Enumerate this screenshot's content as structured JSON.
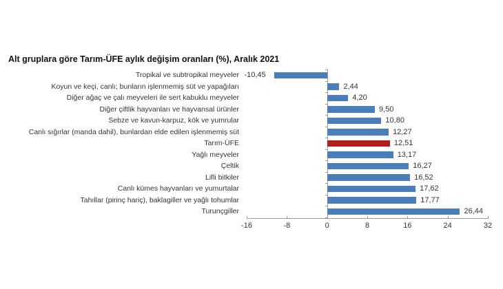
{
  "chart_data": {
    "type": "bar",
    "orientation": "horizontal",
    "title": "Alt gruplara göre Tarım-ÜFE aylık değişim oranları (%), Aralık 2021",
    "xlabel": "",
    "ylabel": "",
    "xlim": [
      -16,
      32
    ],
    "xticks": [
      "-16",
      "-8",
      "0",
      "8",
      "16",
      "24",
      "32"
    ],
    "grid": false,
    "legend": null,
    "categories": [
      "Tropikal ve subtropikal meyveler",
      "Koyun ve keçi, canlı; bunların işlenmemiş süt ve yapağıları",
      "Diğer ağaç ve çalı meyveleri ile sert kabuklu meyveler",
      "Diğer çiftlik hayvanları ve hayvansal ürünler",
      "Sebze ve kavun-karpuz, kök ve yumrular",
      "Canlı sığırlar (manda dahil), bunlardan elde edilen işlenmemiş süt",
      "Tarım-ÜFE",
      "Yağlı meyveler",
      "Çeltik",
      "Lifli bitkiler",
      "Canlı kümes hayvanları ve yumurtalar",
      "Tahıllar (pirinç hariç), baklagiller ve yağlı tohumlar",
      "Turunçgiller"
    ],
    "values": [
      -10.45,
      2.44,
      4.2,
      9.5,
      10.8,
      12.27,
      12.51,
      13.17,
      16.27,
      16.52,
      17.62,
      17.77,
      26.44
    ],
    "value_labels": [
      "-10,45",
      "2,44",
      "4,20",
      "9,50",
      "10,80",
      "12,27",
      "12,51",
      "13,17",
      "16,27",
      "16,52",
      "17,62",
      "17,77",
      "26,44"
    ],
    "highlight_index": 6,
    "colors": {
      "bar": "#4a7ebb",
      "highlight": "#b21e1e",
      "axis": "#999999"
    }
  }
}
